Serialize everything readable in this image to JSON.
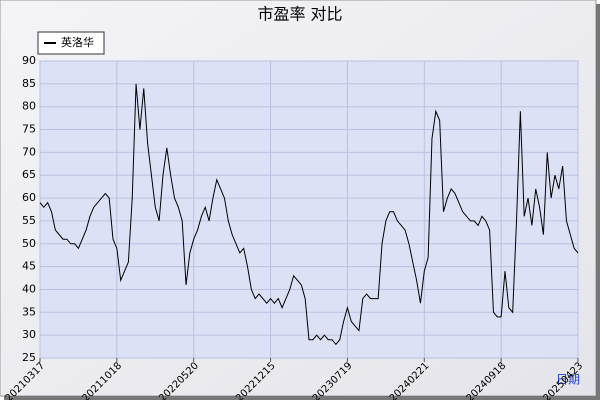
{
  "chart_data": {
    "type": "line",
    "title": "市盈率  对比",
    "xlabel": "日期",
    "categories": [
      "20210317",
      null,
      null,
      null,
      null,
      null,
      null,
      null,
      null,
      null,
      null,
      null,
      null,
      null,
      null,
      null,
      null,
      null,
      null,
      null,
      "20211018",
      null,
      null,
      null,
      null,
      null,
      null,
      null,
      null,
      null,
      null,
      null,
      null,
      null,
      null,
      null,
      null,
      null,
      null,
      null,
      "20220520",
      null,
      null,
      null,
      null,
      null,
      null,
      null,
      null,
      null,
      null,
      null,
      null,
      null,
      null,
      null,
      null,
      null,
      null,
      null,
      "20221215",
      null,
      null,
      null,
      null,
      null,
      null,
      null,
      null,
      null,
      null,
      null,
      null,
      null,
      null,
      null,
      null,
      null,
      null,
      null,
      "20230719",
      null,
      null,
      null,
      null,
      null,
      null,
      null,
      null,
      null,
      null,
      null,
      null,
      null,
      null,
      null,
      null,
      null,
      null,
      null,
      "20240221",
      null,
      null,
      null,
      null,
      null,
      null,
      null,
      null,
      null,
      null,
      null,
      null,
      null,
      null,
      null,
      null,
      null,
      null,
      null,
      "20240918",
      null,
      null,
      null,
      null,
      null,
      null,
      null,
      null,
      null,
      null,
      null,
      null,
      null,
      null,
      null,
      null,
      null,
      null,
      null,
      "20250423"
    ],
    "series": [
      {
        "name": "英洛华",
        "color": "#000000",
        "values": [
          59,
          58,
          59,
          57,
          53,
          52,
          51,
          51,
          50,
          50,
          49,
          51,
          53,
          56,
          58,
          59,
          60,
          61,
          60,
          51,
          49,
          42,
          44,
          46,
          60,
          85,
          75,
          84,
          72,
          65,
          58,
          55,
          65,
          71,
          65,
          60,
          58,
          55,
          41,
          48,
          51,
          53,
          56,
          58,
          55,
          60,
          64,
          62,
          60,
          55,
          52,
          50,
          48,
          49,
          45,
          40,
          38,
          39,
          38,
          37,
          38,
          37,
          38,
          36,
          38,
          40,
          43,
          42,
          41,
          38,
          29,
          29,
          30,
          29,
          30,
          29,
          29,
          28,
          29,
          33,
          36,
          33,
          32,
          31,
          38,
          39,
          38,
          38,
          38,
          50,
          55,
          57,
          57,
          55,
          54,
          53,
          50,
          46,
          42,
          37,
          44,
          47,
          73,
          79,
          77,
          57,
          60,
          62,
          61,
          59,
          57,
          56,
          55,
          55,
          54,
          56,
          55,
          53,
          35,
          34,
          34,
          44,
          36,
          35,
          55,
          79,
          56,
          60,
          54,
          62,
          58,
          52,
          70,
          60,
          65,
          62,
          67,
          55,
          52,
          49,
          48
        ]
      }
    ],
    "ylim": [
      25,
      90
    ],
    "yticks": [
      25,
      30,
      35,
      40,
      45,
      50,
      55,
      60,
      65,
      70,
      75,
      80,
      85,
      90
    ],
    "grid": true,
    "legend": "top-left"
  }
}
